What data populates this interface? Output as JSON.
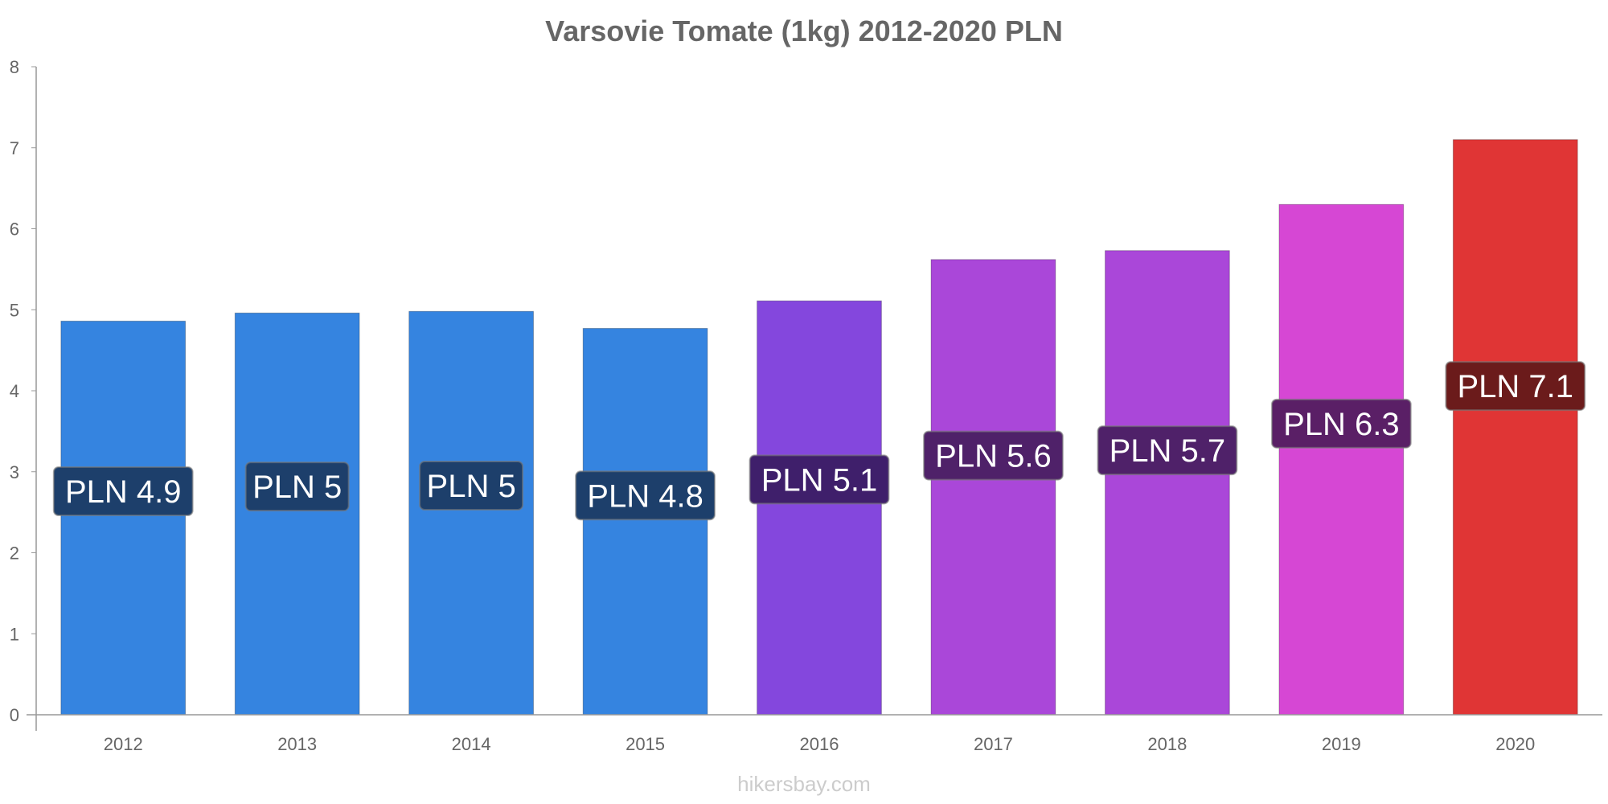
{
  "chart_data": {
    "type": "bar",
    "title": "Varsovie Tomate (1kg) 2012-2020 PLN",
    "xlabel": "",
    "ylabel": "",
    "ylim": [
      0,
      8
    ],
    "yticks": [
      "0",
      "1",
      "2",
      "3",
      "4",
      "5",
      "6",
      "7",
      "8"
    ],
    "categories": [
      "2012",
      "2013",
      "2014",
      "2015",
      "2016",
      "2017",
      "2018",
      "2019",
      "2020"
    ],
    "values": [
      4.86,
      4.96,
      4.98,
      4.77,
      5.11,
      5.62,
      5.73,
      6.3,
      7.1
    ],
    "data_labels": [
      "PLN 4.9",
      "PLN 5",
      "PLN 5",
      "PLN 4.8",
      "PLN 5.1",
      "PLN 5.6",
      "PLN 5.7",
      "PLN 6.3",
      "PLN 7.1"
    ],
    "bar_colors": [
      "#3584e0",
      "#3584e0",
      "#3584e0",
      "#3584e0",
      "#8447dd",
      "#aa47d9",
      "#aa47d9",
      "#d647d4",
      "#e03535"
    ],
    "label_colors": [
      "#1d3f6b",
      "#1d3f6b",
      "#1d3f6b",
      "#1d3f6b",
      "#3f1f6b",
      "#4f2169",
      "#4f2169",
      "#5a1f66",
      "#6b1b1b"
    ],
    "grid": false,
    "legend": "none"
  },
  "footer": {
    "watermark": "hikersbay.com"
  },
  "colors": {
    "axis": "#999999",
    "tick_text": "#666666",
    "title": "#666666"
  }
}
